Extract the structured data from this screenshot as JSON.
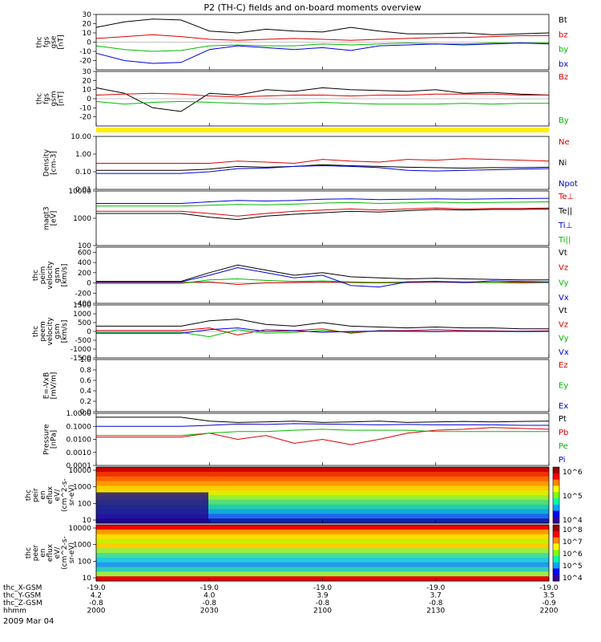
{
  "title": "P2 (TH-C) fields and on-board moments overview",
  "date_label": "2009 Mar 04",
  "chart_data": {
    "type": "line",
    "time_ticks": [
      "2000",
      "2030",
      "2100",
      "2130",
      "2200"
    ],
    "orbit_rows": [
      {
        "label": "thc_X-GSM",
        "values": [
          "-19.0",
          "-19.0",
          "-19.0",
          "-19.0",
          "-19.0"
        ]
      },
      {
        "label": "thc_Y-GSM",
        "values": [
          "4.2",
          "4.0",
          "3.9",
          "3.7",
          "3.5"
        ]
      },
      {
        "label": "thc_Z-GSM",
        "values": [
          "-0.8",
          "-0.8",
          "-0.8",
          "-0.8",
          "-0.9"
        ]
      },
      {
        "label": "hhmm",
        "values": [
          "2000",
          "2030",
          "2100",
          "2130",
          "2200"
        ]
      }
    ],
    "panels": [
      {
        "ylabel": [
          "thc",
          "fgs",
          "gse",
          "[nT]"
        ],
        "ylim": [
          -30,
          30
        ],
        "yticks": [
          "30",
          "20",
          "10",
          "0",
          "-10",
          "-20"
        ],
        "legend": [
          {
            "name": "Bt",
            "color": "#000000"
          },
          {
            "name": "bz",
            "color": "#dd0000"
          },
          {
            "name": "by",
            "color": "#00bb00"
          },
          {
            "name": "bx",
            "color": "#0000dd"
          }
        ],
        "series": [
          {
            "name": "Bt",
            "color": "#000000",
            "values": [
              16,
              22,
              25,
              24,
              12,
              10,
              14,
              12,
              11,
              16,
              12,
              9,
              9,
              10,
              8,
              9,
              10
            ]
          },
          {
            "name": "bz",
            "color": "#dd0000",
            "values": [
              4,
              6,
              8,
              6,
              3,
              2,
              3,
              4,
              3,
              2,
              3,
              4,
              5,
              5,
              6,
              7,
              7
            ]
          },
          {
            "name": "by",
            "color": "#00bb00",
            "values": [
              -4,
              -8,
              -10,
              -9,
              -4,
              -3,
              -4,
              -4,
              -2,
              -3,
              -2,
              -1,
              -2,
              -2,
              -1,
              -1,
              -1
            ]
          },
          {
            "name": "bx",
            "color": "#0000dd",
            "values": [
              -12,
              -20,
              -23,
              -22,
              -8,
              -4,
              -6,
              -8,
              -6,
              -9,
              -4,
              -3,
              -2,
              -3,
              -2,
              -1,
              -2
            ]
          }
        ]
      },
      {
        "ylabel": [
          "thc",
          "fgs",
          "gsm",
          "[nT]"
        ],
        "ylim": [
          -30,
          30
        ],
        "yticks": [
          "30",
          "20",
          "10",
          "0",
          "-10",
          "-20"
        ],
        "legend": [
          {
            "name": "Bz",
            "color": "#dd0000"
          },
          {
            "name": "By",
            "color": "#00bb00"
          }
        ],
        "series": [
          {
            "name": "Bt",
            "color": "#000000",
            "values": [
              12,
              6,
              -10,
              -14,
              6,
              4,
              10,
              8,
              12,
              10,
              9,
              8,
              10,
              6,
              7,
              5,
              4
            ]
          },
          {
            "name": "Bz",
            "color": "#dd0000",
            "values": [
              4,
              5,
              6,
              5,
              3,
              2,
              3,
              4,
              4,
              3,
              4,
              4,
              5,
              5,
              5,
              4,
              4
            ]
          },
          {
            "name": "By",
            "color": "#00bb00",
            "values": [
              -3,
              -6,
              -4,
              -3,
              -4,
              -5,
              -6,
              -5,
              -4,
              -5,
              -6,
              -6,
              -6,
              -5,
              -6,
              -5,
              -5
            ]
          }
        ]
      },
      {
        "ylabel": [
          "Density",
          "[cm-3]"
        ],
        "scale": "log",
        "ylim": [
          0.01,
          10
        ],
        "yticks": [
          "10.00",
          "1.00",
          "0.10",
          "0.01"
        ],
        "legend": [
          {
            "name": "Ne",
            "color": "#dd0000"
          },
          {
            "name": "Ni",
            "color": "#000000"
          },
          {
            "name": "Npot",
            "color": "#0000dd"
          }
        ],
        "series": [
          {
            "name": "Ne",
            "color": "#dd0000",
            "values": [
              0.3,
              0.3,
              0.3,
              0.3,
              0.3,
              0.4,
              0.35,
              0.3,
              0.5,
              0.4,
              0.35,
              0.5,
              0.45,
              0.55,
              0.5,
              0.45,
              0.4
            ]
          },
          {
            "name": "Ni",
            "color": "#000000",
            "values": [
              0.12,
              0.12,
              0.12,
              0.12,
              0.14,
              0.2,
              0.18,
              0.2,
              0.25,
              0.22,
              0.2,
              0.18,
              0.17,
              0.16,
              0.17,
              0.17,
              0.18
            ]
          },
          {
            "name": "Npot",
            "color": "#0000dd",
            "values": [
              0.08,
              0.08,
              0.08,
              0.08,
              0.1,
              0.15,
              0.16,
              0.2,
              0.22,
              0.2,
              0.17,
              0.12,
              0.11,
              0.12,
              0.13,
              0.14,
              0.15
            ]
          }
        ]
      },
      {
        "ylabel": [
          "magt3",
          "[eV]"
        ],
        "scale": "log",
        "ylim": [
          100,
          10000
        ],
        "yticks": [
          "10000",
          "1000",
          "100"
        ],
        "legend": [
          {
            "name": "Te⊥",
            "color": "#dd0000"
          },
          {
            "name": "Te||",
            "color": "#000000"
          },
          {
            "name": "Ti⊥",
            "color": "#0000dd"
          },
          {
            "name": "Ti||",
            "color": "#00bb00"
          }
        ],
        "series": [
          {
            "name": "Te⊥",
            "color": "#dd0000",
            "values": [
              1800,
              1800,
              1800,
              1800,
              1500,
              1200,
              1500,
              1800,
              2000,
              2200,
              2000,
              2200,
              2400,
              2200,
              2300,
              2300,
              2400
            ]
          },
          {
            "name": "Te||",
            "color": "#000000",
            "values": [
              1500,
              1500,
              1500,
              1500,
              1100,
              900,
              1200,
              1400,
              1600,
              1800,
              1700,
              1900,
              2100,
              2000,
              2100,
              2100,
              2200
            ]
          },
          {
            "name": "Ti⊥",
            "color": "#0000dd",
            "values": [
              3500,
              3500,
              3500,
              3500,
              4000,
              4500,
              4300,
              4500,
              5000,
              5200,
              4800,
              5000,
              5200,
              5000,
              5200,
              5300,
              5400
            ]
          },
          {
            "name": "Ti||",
            "color": "#00bb00",
            "values": [
              2800,
              2800,
              2800,
              2800,
              3000,
              3200,
              3100,
              3300,
              3600,
              3800,
              3500,
              3700,
              3900,
              3700,
              3800,
              3900,
              4000
            ]
          }
        ]
      },
      {
        "ylabel": [
          "thc",
          "peim",
          "velocity",
          "gsm",
          "[km/s]"
        ],
        "ylim": [
          -400,
          700
        ],
        "yticks": [
          "600",
          "400",
          "200",
          "0",
          "-200",
          "-400"
        ],
        "legend": [
          {
            "name": "Vt",
            "color": "#000000"
          },
          {
            "name": "Vz",
            "color": "#dd0000"
          },
          {
            "name": "Vy",
            "color": "#00bb00"
          },
          {
            "name": "Vx",
            "color": "#0000dd"
          }
        ],
        "series": [
          {
            "name": "Vt",
            "color": "#000000",
            "values": [
              30,
              30,
              30,
              30,
              200,
              350,
              250,
              150,
              200,
              120,
              100,
              80,
              90,
              80,
              70,
              60,
              60
            ]
          },
          {
            "name": "Vz",
            "color": "#dd0000",
            "values": [
              10,
              10,
              10,
              10,
              20,
              -30,
              0,
              10,
              20,
              10,
              0,
              10,
              20,
              10,
              10,
              0,
              10
            ]
          },
          {
            "name": "Vy",
            "color": "#00bb00",
            "values": [
              -10,
              -10,
              -10,
              -10,
              60,
              80,
              50,
              30,
              40,
              20,
              10,
              20,
              30,
              20,
              10,
              20,
              10
            ]
          },
          {
            "name": "Vx",
            "color": "#0000dd",
            "values": [
              20,
              20,
              20,
              20,
              150,
              300,
              200,
              100,
              150,
              -50,
              -80,
              20,
              30,
              10,
              40,
              30,
              20
            ]
          }
        ]
      },
      {
        "ylabel": [
          "thc",
          "peem",
          "velocity",
          "gsm",
          "[km/s]"
        ],
        "ylim": [
          -1500,
          1500
        ],
        "yticks": [
          "1500",
          "1000",
          "500",
          "0",
          "-500",
          "-1000",
          "-1500"
        ],
        "legend": [
          {
            "name": "Vt",
            "color": "#000000"
          },
          {
            "name": "Vz",
            "color": "#dd0000"
          },
          {
            "name": "Vy",
            "color": "#00bb00"
          },
          {
            "name": "Vx",
            "color": "#0000dd"
          }
        ],
        "series": [
          {
            "name": "Vt",
            "color": "#000000",
            "values": [
              300,
              300,
              300,
              300,
              600,
              700,
              400,
              300,
              500,
              300,
              250,
              200,
              250,
              200,
              200,
              150,
              150
            ]
          },
          {
            "name": "Vz",
            "color": "#dd0000",
            "values": [
              50,
              50,
              50,
              50,
              200,
              -200,
              100,
              50,
              150,
              -100,
              50,
              50,
              100,
              50,
              30,
              20,
              30
            ]
          },
          {
            "name": "Vy",
            "color": "#00bb00",
            "values": [
              -50,
              -50,
              -50,
              -50,
              -300,
              100,
              -100,
              -50,
              50,
              -50,
              30,
              0,
              -20,
              10,
              0,
              -10,
              0
            ]
          },
          {
            "name": "Vx",
            "color": "#0000dd",
            "values": [
              -100,
              -100,
              -100,
              -100,
              100,
              200,
              0,
              50,
              -50,
              0,
              20,
              10,
              0,
              10,
              0,
              0,
              0
            ]
          }
        ]
      },
      {
        "ylabel": [
          "E=-VxB",
          "[mV/m]"
        ],
        "ylim": [
          0,
          1
        ],
        "yticks": [
          "1.0",
          "0.8",
          "0.6",
          "0.4",
          "0.2",
          "0.0"
        ],
        "legend": [
          {
            "name": "Ez",
            "color": "#dd0000"
          },
          {
            "name": "Ey",
            "color": "#00bb00"
          },
          {
            "name": "Ex",
            "color": "#0000dd"
          }
        ],
        "series": []
      },
      {
        "ylabel": [
          "Pressure",
          "[nPa]"
        ],
        "scale": "log",
        "ylim": [
          0.0001,
          1
        ],
        "yticks": [
          "1.0000",
          "0.1000",
          "0.0100",
          "0.0010",
          "0.0001"
        ],
        "legend": [
          {
            "name": "Pt",
            "color": "#000000"
          },
          {
            "name": "Pb",
            "color": "#dd0000"
          },
          {
            "name": "Pe",
            "color": "#00bb00"
          },
          {
            "name": "Pi",
            "color": "#0000dd"
          }
        ],
        "series": [
          {
            "name": "Pt",
            "color": "#000000",
            "values": [
              0.5,
              0.5,
              0.5,
              0.5,
              0.25,
              0.2,
              0.22,
              0.25,
              0.2,
              0.22,
              0.25,
              0.2,
              0.22,
              0.24,
              0.22,
              0.24,
              0.25
            ]
          },
          {
            "name": "Pb",
            "color": "#dd0000",
            "values": [
              0.015,
              0.015,
              0.015,
              0.015,
              0.03,
              0.01,
              0.02,
              0.005,
              0.01,
              0.004,
              0.01,
              0.03,
              0.05,
              0.06,
              0.08,
              0.07,
              0.06
            ]
          },
          {
            "name": "Pe",
            "color": "#00bb00",
            "values": [
              0.02,
              0.02,
              0.02,
              0.02,
              0.03,
              0.04,
              0.04,
              0.05,
              0.06,
              0.05,
              0.05,
              0.05,
              0.04,
              0.04,
              0.04,
              0.04,
              0.04
            ]
          },
          {
            "name": "Pi",
            "color": "#0000dd",
            "values": [
              0.1,
              0.1,
              0.1,
              0.1,
              0.12,
              0.15,
              0.14,
              0.16,
              0.15,
              0.14,
              0.13,
              0.14,
              0.13,
              0.13,
              0.13,
              0.12,
              0.12
            ]
          }
        ]
      },
      {
        "type": "heatmap",
        "ylabel": [
          "thc",
          "peir",
          "en",
          "eflux",
          "eV/",
          "(cm^2-s-",
          "sr-eV)"
        ],
        "scale": "log",
        "yticks": [
          "10000",
          "1000",
          "100",
          "10"
        ],
        "colorbar_ticks": [
          "10^6",
          "10^5",
          "10^4"
        ]
      },
      {
        "type": "heatmap",
        "ylabel": [
          "thc",
          "peer",
          "en",
          "eflux",
          "eV/",
          "(cm^2-s-",
          "sr-eV)"
        ],
        "scale": "log",
        "yticks": [
          "10000",
          "1000",
          "100",
          "10"
        ],
        "colorbar_ticks": [
          "10^8",
          "10^7",
          "10^6",
          "10^5",
          "10^4"
        ]
      }
    ]
  }
}
